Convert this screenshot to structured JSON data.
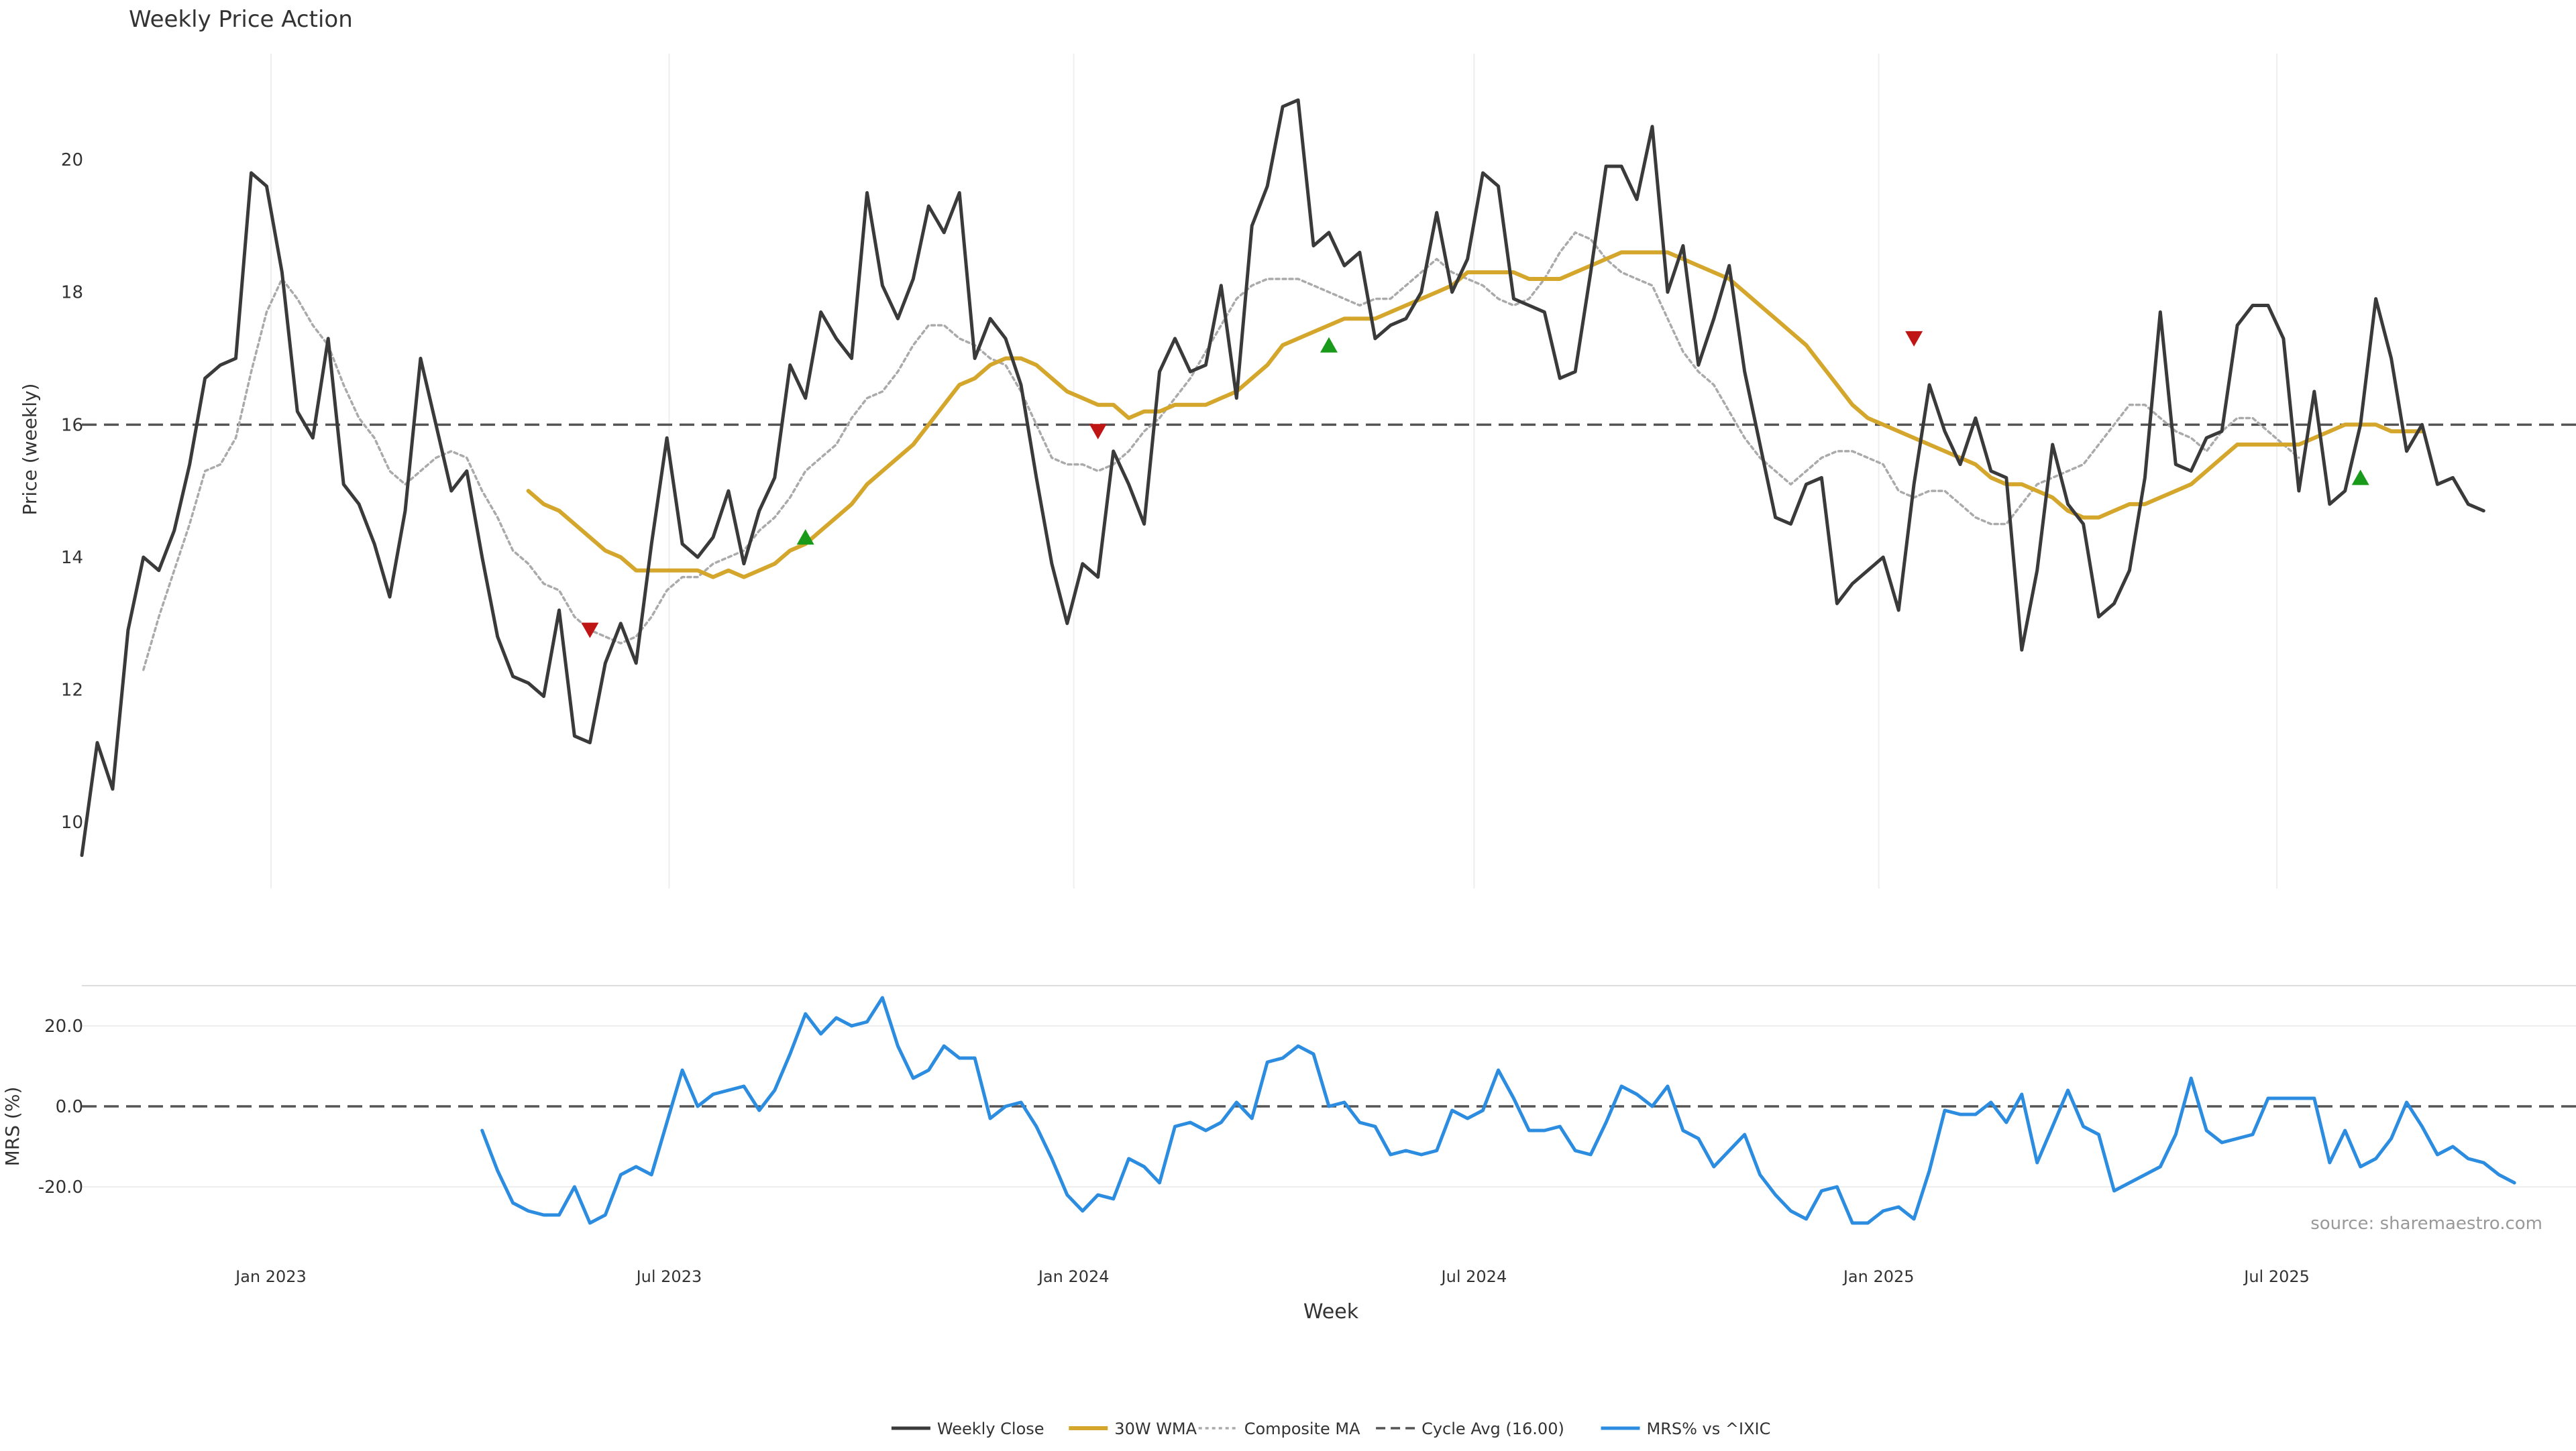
{
  "title": "Weekly Price Action",
  "source_note": "source: sharemaestro.com",
  "colors": {
    "close": "#3a3a3a",
    "wma": "#d4a72c",
    "composite": "#aaaaaa",
    "cycle": "#555555",
    "mrs": "#2b8ce0",
    "signal_up": "#1a9a1a",
    "signal_down": "#c01515",
    "grid": "#eeeeee"
  },
  "chart_data": [
    {
      "type": "line",
      "panel": "price",
      "ylabel": "Price (weekly)",
      "xlabel": "",
      "ylim": [
        9.0,
        21.6
      ],
      "yticks": [
        "10",
        "12",
        "14",
        "16",
        "18",
        "20"
      ],
      "x_start": "2022-10-07",
      "x_step_days": 7,
      "x_end": "2025-11-14",
      "grid": "vertical",
      "series": [
        {
          "name": "Weekly Close",
          "values": [
            9.5,
            11.2,
            10.5,
            12.9,
            14.0,
            13.8,
            14.4,
            15.4,
            16.7,
            16.9,
            17.0,
            19.8,
            19.6,
            18.3,
            16.2,
            15.8,
            17.3,
            15.1,
            14.8,
            14.2,
            13.4,
            14.7,
            17.0,
            16.0,
            15.0,
            15.3,
            14.0,
            12.8,
            12.2,
            12.1,
            11.9,
            13.2,
            11.3,
            11.2,
            12.4,
            13.0,
            12.4,
            14.2,
            15.8,
            14.2,
            14.0,
            14.3,
            15.0,
            13.9,
            14.7,
            15.2,
            16.9,
            16.4,
            17.7,
            17.3,
            17.0,
            19.5,
            18.1,
            17.6,
            18.2,
            19.3,
            18.9,
            19.5,
            17.0,
            17.6,
            17.3,
            16.6,
            15.2,
            13.9,
            13.0,
            13.9,
            13.7,
            15.6,
            15.1,
            14.5,
            16.8,
            17.3,
            16.8,
            16.9,
            18.1,
            16.4,
            19.0,
            19.6,
            20.8,
            20.9,
            18.7,
            18.9,
            18.4,
            18.6,
            17.3,
            17.5,
            17.6,
            18.0,
            19.2,
            18.0,
            18.5,
            19.8,
            19.6,
            17.9,
            17.8,
            17.7,
            16.7,
            16.8,
            18.3,
            19.9,
            19.9,
            19.4,
            20.5,
            18.0,
            18.7,
            16.9,
            17.6,
            18.4,
            16.8,
            15.7,
            14.6,
            14.5,
            15.1,
            15.2,
            13.3,
            13.6,
            13.8,
            14.0,
            13.2,
            15.1,
            16.6,
            15.9,
            15.4,
            16.1,
            15.3,
            15.2,
            12.6,
            13.8,
            15.7,
            14.8,
            14.5,
            13.1,
            13.3,
            13.8,
            15.2,
            17.7,
            15.4,
            15.3,
            15.8,
            15.9,
            17.5,
            17.8,
            17.8,
            17.3,
            15.0,
            16.5,
            14.8,
            15.0,
            16.0,
            17.9,
            17.0,
            15.6,
            16.0,
            15.1,
            15.2,
            14.8,
            14.7
          ]
        },
        {
          "name": "30W WMA",
          "start_index": 29,
          "values": [
            15.0,
            14.8,
            14.7,
            14.5,
            14.3,
            14.1,
            14.0,
            13.8,
            13.8,
            13.8,
            13.8,
            13.8,
            13.7,
            13.8,
            13.7,
            13.8,
            13.9,
            14.1,
            14.2,
            14.4,
            14.6,
            14.8,
            15.1,
            15.3,
            15.5,
            15.7,
            16.0,
            16.3,
            16.6,
            16.7,
            16.9,
            17.0,
            17.0,
            16.9,
            16.7,
            16.5,
            16.4,
            16.3,
            16.3,
            16.1,
            16.2,
            16.2,
            16.3,
            16.3,
            16.3,
            16.4,
            16.5,
            16.7,
            16.9,
            17.2,
            17.3,
            17.4,
            17.5,
            17.6,
            17.6,
            17.6,
            17.7,
            17.8,
            17.9,
            18.0,
            18.1,
            18.3,
            18.3,
            18.3,
            18.3,
            18.2,
            18.2,
            18.2,
            18.3,
            18.4,
            18.5,
            18.6,
            18.6,
            18.6,
            18.6,
            18.5,
            18.4,
            18.3,
            18.2,
            18.0,
            17.8,
            17.6,
            17.4,
            17.2,
            16.9,
            16.6,
            16.3,
            16.1,
            16.0,
            15.9,
            15.8,
            15.7,
            15.6,
            15.5,
            15.4,
            15.2,
            15.1,
            15.1,
            15.0,
            14.9,
            14.7,
            14.6,
            14.6,
            14.7,
            14.8,
            14.8,
            14.9,
            15.0,
            15.1,
            15.3,
            15.5,
            15.7,
            15.7,
            15.7,
            15.7,
            15.7,
            15.8,
            15.9,
            16.0,
            16.0,
            16.0,
            15.9,
            15.9,
            15.9
          ]
        },
        {
          "name": "Composite MA",
          "start_index": 4,
          "values": [
            12.3,
            13.1,
            13.8,
            14.5,
            15.3,
            15.4,
            15.8,
            16.8,
            17.7,
            18.2,
            17.9,
            17.5,
            17.2,
            16.6,
            16.1,
            15.8,
            15.3,
            15.1,
            15.3,
            15.5,
            15.6,
            15.5,
            15.0,
            14.6,
            14.1,
            13.9,
            13.6,
            13.5,
            13.1,
            12.9,
            12.8,
            12.7,
            12.8,
            13.1,
            13.5,
            13.7,
            13.7,
            13.9,
            14.0,
            14.1,
            14.4,
            14.6,
            14.9,
            15.3,
            15.5,
            15.7,
            16.1,
            16.4,
            16.5,
            16.8,
            17.2,
            17.5,
            17.5,
            17.3,
            17.2,
            17.0,
            16.9,
            16.5,
            16.0,
            15.5,
            15.4,
            15.4,
            15.3,
            15.4,
            15.6,
            15.9,
            16.1,
            16.4,
            16.7,
            17.1,
            17.5,
            17.9,
            18.1,
            18.2,
            18.2,
            18.2,
            18.1,
            18.0,
            17.9,
            17.8,
            17.9,
            17.9,
            18.1,
            18.3,
            18.5,
            18.3,
            18.2,
            18.1,
            17.9,
            17.8,
            17.9,
            18.2,
            18.6,
            18.9,
            18.8,
            18.5,
            18.3,
            18.2,
            18.1,
            17.6,
            17.1,
            16.8,
            16.6,
            16.2,
            15.8,
            15.5,
            15.3,
            15.1,
            15.3,
            15.5,
            15.6,
            15.6,
            15.5,
            15.4,
            15.0,
            14.9,
            15.0,
            15.0,
            14.8,
            14.6,
            14.5,
            14.5,
            14.8,
            15.1,
            15.2,
            15.3,
            15.4,
            15.7,
            16.0,
            16.3,
            16.3,
            16.1,
            15.9,
            15.8,
            15.6,
            15.9,
            16.1,
            16.1,
            15.9,
            15.7,
            15.5
          ]
        },
        {
          "name": "Cycle Avg (16.00)",
          "constant": 16.0
        }
      ],
      "signals": [
        {
          "index": 33,
          "type": "down",
          "value": 12.9
        },
        {
          "index": 47,
          "type": "up",
          "value": 14.3
        },
        {
          "index": 66,
          "type": "down",
          "value": 15.9
        },
        {
          "index": 81,
          "type": "up",
          "value": 17.2
        },
        {
          "index": 119,
          "type": "down",
          "value": 17.3
        },
        {
          "index": 148,
          "type": "up",
          "value": 15.2
        }
      ]
    },
    {
      "type": "line",
      "panel": "mrs",
      "ylabel": "MRS (%)",
      "xlabel": "Week",
      "ylim": [
        -30.0,
        30.0
      ],
      "yticks": [
        "20.0",
        "0.0",
        "-20.0"
      ],
      "zero_line": 0.0,
      "xticks": [
        "Jan 2023",
        "Jul 2023",
        "Jan 2024",
        "Jul 2024",
        "Jan 2025",
        "Jul 2025"
      ],
      "xtick_dates": [
        "2023-01-01",
        "2023-07-01",
        "2024-01-01",
        "2024-07-01",
        "2025-01-01",
        "2025-07-01"
      ],
      "grid": "horizontal",
      "series": [
        {
          "name": "MRS% vs ^IXIC",
          "start_index": 26,
          "values": [
            -6,
            -16,
            -24,
            -26,
            -27,
            -27,
            -20,
            -29,
            -27,
            -17,
            -15,
            -17,
            -4,
            9,
            0,
            3,
            4,
            5,
            -1,
            4,
            13,
            23,
            18,
            22,
            20,
            21,
            27,
            15,
            7,
            9,
            15,
            12,
            12,
            -3,
            0,
            1,
            -5,
            -13,
            -22,
            -26,
            -22,
            -23,
            -13,
            -15,
            -19,
            -5,
            -4,
            -6,
            -4,
            1,
            -3,
            11,
            12,
            15,
            13,
            0,
            1,
            -4,
            -5,
            -12,
            -11,
            -12,
            -11,
            -1,
            -3,
            -1,
            9,
            2,
            -6,
            -6,
            -5,
            -11,
            -12,
            -4,
            5,
            3,
            0,
            5,
            -6,
            -8,
            -15,
            -11,
            -7,
            -17,
            -22,
            -26,
            -28,
            -21,
            -20,
            -29,
            -29,
            -26,
            -25,
            -28,
            -16,
            -1,
            -2,
            -2,
            1,
            -4,
            3,
            -14,
            -5,
            4,
            -5,
            -7,
            -21,
            -19,
            -17,
            -15,
            -7,
            7,
            -6,
            -9,
            -8,
            -7,
            2,
            2,
            2,
            2,
            -14,
            -6,
            -15,
            -13,
            -8,
            1,
            -5,
            -12,
            -10,
            -13,
            -14,
            -17,
            -19
          ]
        }
      ]
    }
  ]
}
